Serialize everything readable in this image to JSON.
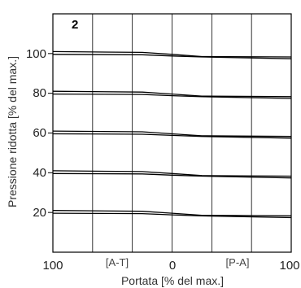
{
  "chart_data": {
    "type": "line",
    "panel_label": "2",
    "xlabel": "Portata [% del max.]",
    "ylabel": "Pressione ridotta [% del max.]",
    "x_tick_labels": [
      "100",
      "[A-T]",
      "0",
      "[P-A]",
      "100"
    ],
    "y_tick_labels": [
      "20",
      "40",
      "60",
      "80",
      "100"
    ],
    "xlim": [
      -100,
      100
    ],
    "ylim": [
      0,
      120
    ],
    "grid": true,
    "series": [
      {
        "x": [
          -100,
          -25,
          0,
          25,
          100
        ],
        "upper": [
          101,
          100.6,
          99.6,
          98.5,
          98.3
        ],
        "lower": [
          99.6,
          99.4,
          98.8,
          98.3,
          97.4
        ]
      },
      {
        "x": [
          -100,
          -25,
          0,
          25,
          100
        ],
        "upper": [
          81,
          80.6,
          79.6,
          78.6,
          78.3
        ],
        "lower": [
          79.6,
          79.4,
          78.8,
          78.3,
          77.4
        ]
      },
      {
        "x": [
          -100,
          -25,
          0,
          25,
          100
        ],
        "upper": [
          61,
          60.6,
          59.6,
          58.6,
          58.3
        ],
        "lower": [
          59.6,
          59.4,
          58.8,
          58.3,
          57.4
        ]
      },
      {
        "x": [
          -100,
          -25,
          0,
          25,
          100
        ],
        "upper": [
          41,
          40.6,
          39.6,
          38.6,
          38.3
        ],
        "lower": [
          39.6,
          39.4,
          38.8,
          38.3,
          37.4
        ]
      },
      {
        "x": [
          -100,
          -25,
          0,
          25,
          100
        ],
        "upper": [
          21,
          20.6,
          19.6,
          18.6,
          18.3
        ],
        "lower": [
          19.6,
          19.4,
          18.8,
          18.3,
          17.4
        ]
      }
    ]
  }
}
